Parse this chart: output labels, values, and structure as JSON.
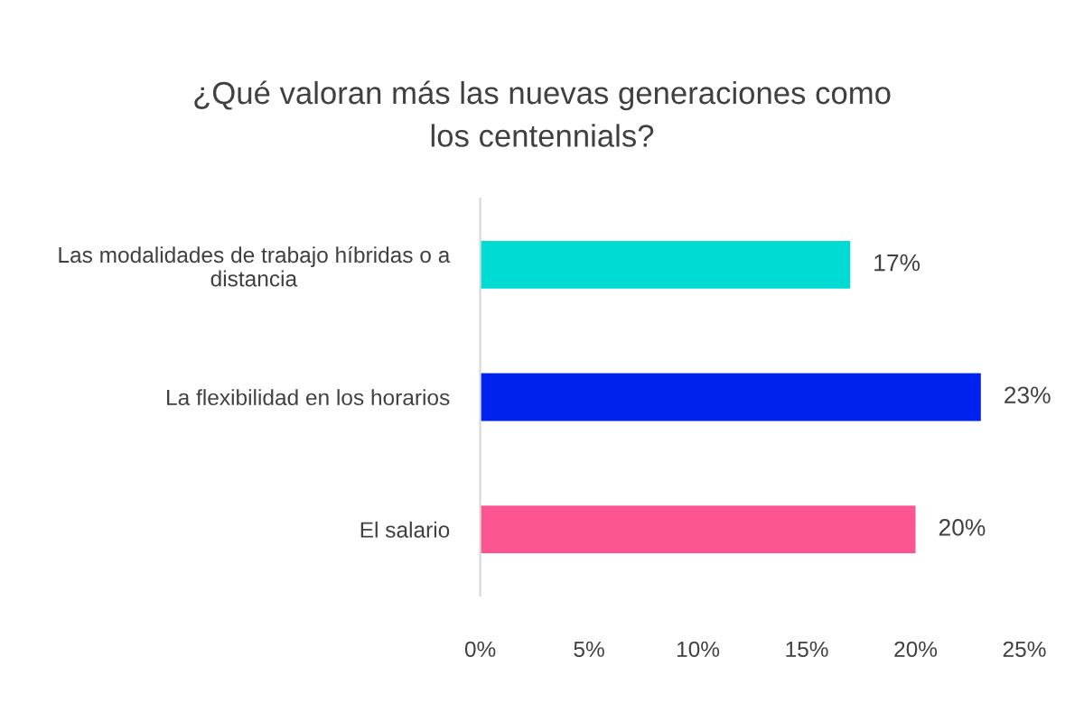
{
  "chart_data": {
    "type": "bar",
    "orientation": "horizontal",
    "title": "¿Qué valoran más las nuevas generaciones como\nlos centennials?",
    "categories": [
      "Las modalidades de trabajo híbridas o a\ndistancia",
      "La flexibilidad en los horarios",
      "El salario"
    ],
    "values": [
      17,
      23,
      20
    ],
    "colors": [
      "#00dcd4",
      "#0022ee",
      "#fd5592"
    ],
    "value_labels": [
      "17%",
      "23%",
      "20%"
    ],
    "xlim": [
      0,
      25
    ],
    "xticks": [
      {
        "value": 0,
        "label": "0%"
      },
      {
        "value": 5,
        "label": "5%"
      },
      {
        "value": 10,
        "label": "10%"
      },
      {
        "value": 15,
        "label": "15%"
      },
      {
        "value": 20,
        "label": "20%"
      },
      {
        "value": 25,
        "label": "25%"
      }
    ]
  }
}
